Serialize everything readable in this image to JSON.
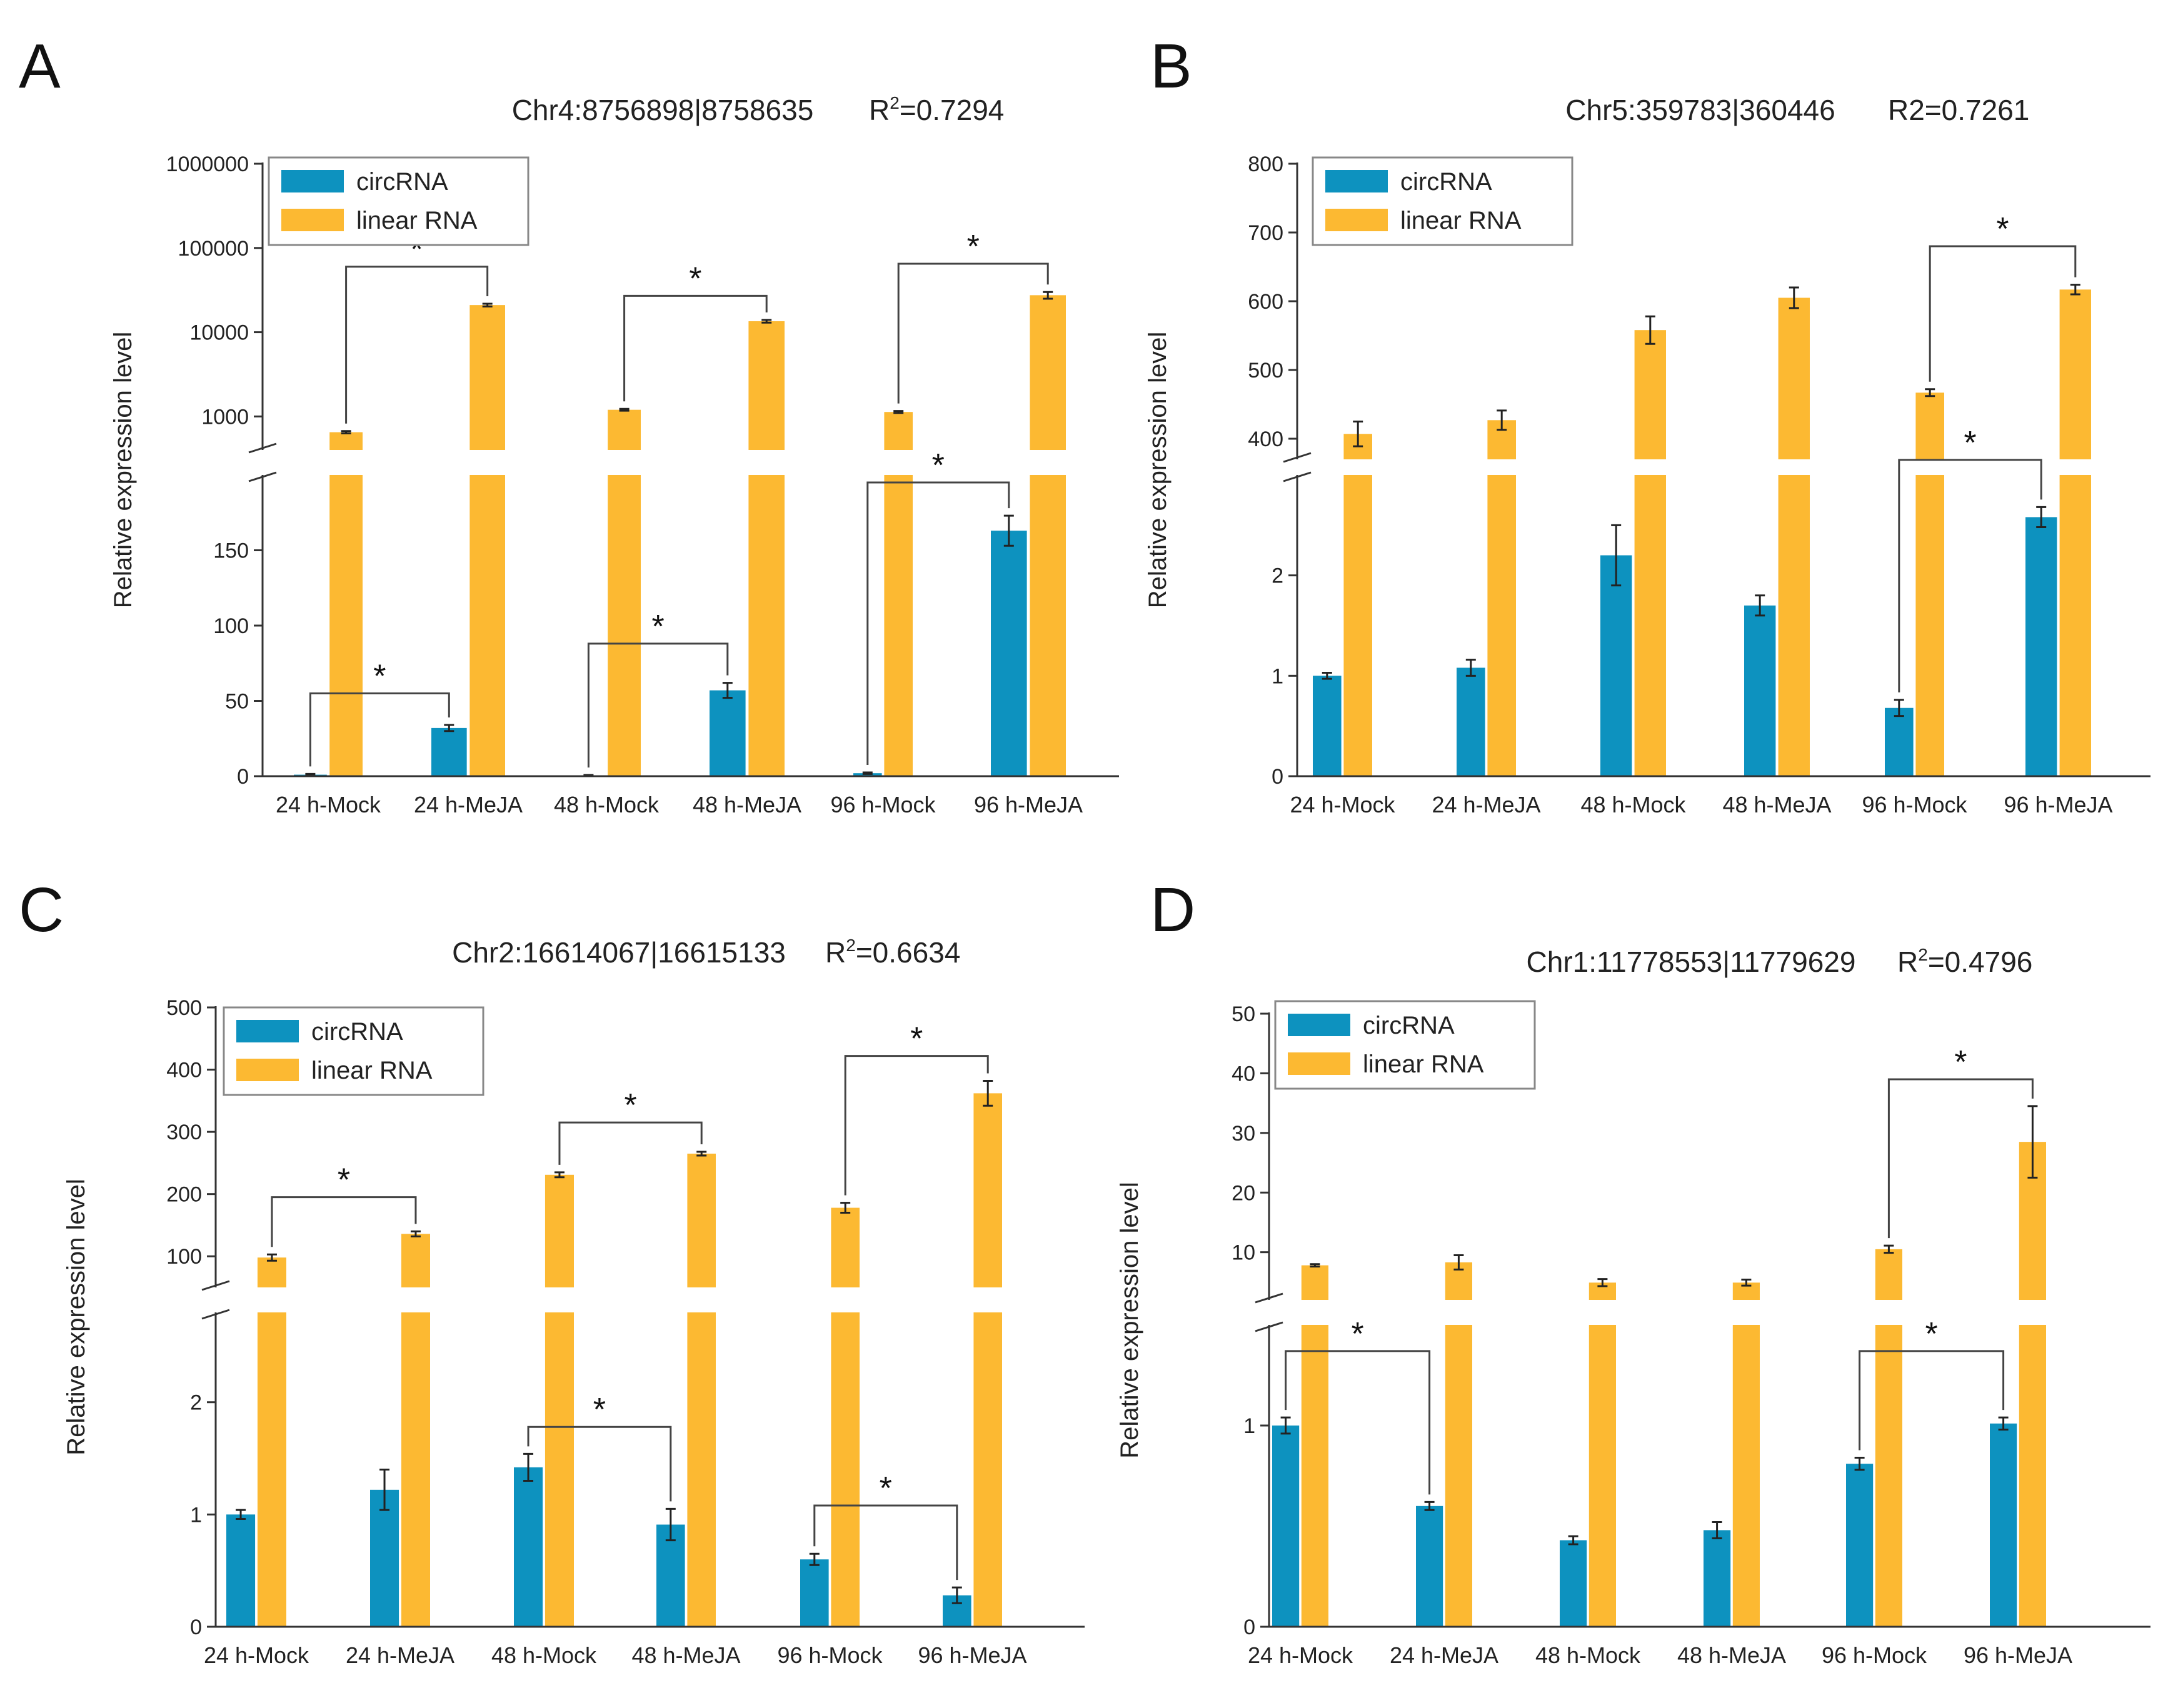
{
  "figure": {
    "colors": {
      "circ": "#0d92bf",
      "linear": "#fcb932",
      "axis": "#333333",
      "bracket": "#444444",
      "text": "#222222"
    },
    "legend": {
      "circ": "circRNA",
      "linear": "linear RNA"
    },
    "ylabel": "Relative expression level",
    "categories": [
      "24 h-Mock",
      "24 h-MeJA",
      "48 h-Mock",
      "48 h-MeJA",
      "96 h-Mock",
      "96 h-MeJA"
    ]
  },
  "chart_data": [
    {
      "panel": "A",
      "type": "bar",
      "title": "Chr4:8756898|8758635",
      "r2_label": "R",
      "r2_sup": "2",
      "r2_value": "=0.7294",
      "ylabel": "Relative expression level",
      "categories": [
        "24 h-Mock",
        "24 h-MeJA",
        "48 h-Mock",
        "48 h-MeJA",
        "96 h-Mock",
        "96 h-MeJA"
      ],
      "lower_axis": {
        "scale": "linear",
        "range": [
          0,
          200
        ],
        "ticks": [
          0,
          50,
          100,
          150
        ]
      },
      "upper_axis": {
        "scale": "log",
        "range": [
          400,
          1000000
        ],
        "ticks": [
          1000,
          10000,
          100000,
          1000000
        ]
      },
      "series": [
        {
          "name": "circRNA",
          "axis": "lower",
          "values": [
            1,
            32,
            0.5,
            57,
            2,
            163
          ],
          "errors": [
            0.5,
            2,
            0.3,
            5,
            0.5,
            10
          ]
        },
        {
          "name": "linear RNA",
          "axis": "upper",
          "values": [
            650,
            21000,
            1200,
            13500,
            1130,
            27500
          ],
          "errors": [
            20,
            800,
            30,
            500,
            30,
            2500
          ]
        }
      ],
      "significance": [
        {
          "axis": "upper",
          "from": [
            0,
            1
          ],
          "to": [
            1,
            1
          ],
          "y": 60000,
          "label": "*"
        },
        {
          "axis": "upper",
          "from": [
            2,
            1
          ],
          "to": [
            3,
            1
          ],
          "y": 27000,
          "label": "*"
        },
        {
          "axis": "upper",
          "from": [
            4,
            1
          ],
          "to": [
            5,
            1
          ],
          "y": 65000,
          "label": "*"
        },
        {
          "axis": "lower",
          "from": [
            0,
            0
          ],
          "to": [
            1,
            0
          ],
          "y": 55,
          "label": "*"
        },
        {
          "axis": "lower",
          "from": [
            2,
            0
          ],
          "to": [
            3,
            0
          ],
          "y": 88,
          "label": "*"
        },
        {
          "axis": "lower",
          "from": [
            4,
            0
          ],
          "to": [
            5,
            0
          ],
          "y": 195,
          "label": "*"
        }
      ]
    },
    {
      "panel": "B",
      "type": "bar",
      "title": "Chr5:359783|360446",
      "r2_label": "R2=0.7261",
      "r2_sup": "",
      "r2_value": "",
      "ylabel": "Relative expression level",
      "categories": [
        "24 h-Mock",
        "24 h-MeJA",
        "48 h-Mock",
        "48 h-MeJA",
        "96 h-Mock",
        "96 h-MeJA"
      ],
      "lower_axis": {
        "scale": "linear",
        "range": [
          0,
          3
        ],
        "ticks": [
          0,
          1,
          2
        ]
      },
      "upper_axis": {
        "scale": "linear",
        "range": [
          370,
          800
        ],
        "ticks": [
          400,
          500,
          600,
          700,
          800
        ]
      },
      "series": [
        {
          "name": "circRNA",
          "axis": "lower",
          "values": [
            1.0,
            1.08,
            2.2,
            1.7,
            0.68,
            2.58
          ],
          "errors": [
            0.03,
            0.08,
            0.3,
            0.1,
            0.08,
            0.1
          ]
        },
        {
          "name": "linear RNA",
          "axis": "upper",
          "values": [
            407,
            427,
            558,
            605,
            467,
            617
          ],
          "errors": [
            18,
            14,
            20,
            15,
            5,
            7
          ]
        }
      ],
      "significance": [
        {
          "axis": "upper",
          "from": [
            4,
            1
          ],
          "to": [
            5,
            1
          ],
          "y": 680,
          "label": "*"
        },
        {
          "axis": "lower",
          "from": [
            4,
            0
          ],
          "to": [
            5,
            0
          ],
          "y": 3.15,
          "label": "*"
        }
      ]
    },
    {
      "panel": "C",
      "type": "bar",
      "title": "Chr2:16614067|16615133",
      "r2_label": "R",
      "r2_sup": "2",
      "r2_value": "=0.6634",
      "ylabel": "Relative expression level",
      "categories": [
        "24 h-Mock",
        "24 h-MeJA",
        "48 h-Mock",
        "48 h-MeJA",
        "96 h-Mock",
        "96 h-MeJA"
      ],
      "lower_axis": {
        "scale": "linear",
        "range": [
          0,
          2.8
        ],
        "ticks": [
          0,
          1,
          2
        ]
      },
      "upper_axis": {
        "scale": "linear",
        "range": [
          50,
          500
        ],
        "ticks": [
          100,
          200,
          300,
          400,
          500
        ]
      },
      "series": [
        {
          "name": "circRNA",
          "axis": "lower",
          "values": [
            1.0,
            1.22,
            1.42,
            0.91,
            0.6,
            0.28
          ],
          "errors": [
            0.04,
            0.18,
            0.12,
            0.14,
            0.05,
            0.07
          ]
        },
        {
          "name": "linear RNA",
          "axis": "upper",
          "values": [
            98,
            136,
            231,
            265,
            178,
            362
          ],
          "errors": [
            5,
            4,
            4,
            3,
            8,
            20
          ]
        }
      ],
      "significance": [
        {
          "axis": "upper",
          "from": [
            0,
            1
          ],
          "to": [
            1,
            1
          ],
          "y": 195,
          "label": "*"
        },
        {
          "axis": "upper",
          "from": [
            2,
            1
          ],
          "to": [
            3,
            1
          ],
          "y": 315,
          "label": "*"
        },
        {
          "axis": "upper",
          "from": [
            4,
            1
          ],
          "to": [
            5,
            1
          ],
          "y": 422,
          "label": "*"
        },
        {
          "axis": "lower",
          "from": [
            2,
            0
          ],
          "to": [
            3,
            0
          ],
          "y": 1.78,
          "label": "*"
        },
        {
          "axis": "lower",
          "from": [
            4,
            0
          ],
          "to": [
            5,
            0
          ],
          "y": 1.08,
          "label": "*"
        }
      ]
    },
    {
      "panel": "D",
      "type": "bar",
      "title": "Chr1:11778553|11779629",
      "r2_label": "R",
      "r2_sup": "2",
      "r2_value": "=0.4796",
      "ylabel": "Relative expression level",
      "categories": [
        "24 h-Mock",
        "24 h-MeJA",
        "48 h-Mock",
        "48 h-MeJA",
        "96 h-Mock",
        "96 h-MeJA"
      ],
      "lower_axis": {
        "scale": "linear",
        "range": [
          0,
          1.5
        ],
        "ticks": [
          0,
          1
        ]
      },
      "upper_axis": {
        "scale": "linear",
        "range": [
          2,
          50
        ],
        "ticks": [
          10,
          20,
          30,
          40,
          50
        ]
      },
      "series": [
        {
          "name": "circRNA",
          "axis": "lower",
          "values": [
            1.0,
            0.6,
            0.43,
            0.48,
            0.81,
            1.01
          ],
          "errors": [
            0.04,
            0.02,
            0.02,
            0.04,
            0.03,
            0.03
          ]
        },
        {
          "name": "linear RNA",
          "axis": "upper",
          "values": [
            7.8,
            8.3,
            4.9,
            4.9,
            10.5,
            28.5
          ],
          "errors": [
            0.2,
            1.2,
            0.6,
            0.5,
            0.6,
            6
          ]
        }
      ],
      "significance": [
        {
          "axis": "upper",
          "from": [
            4,
            1
          ],
          "to": [
            5,
            1
          ],
          "y": 39,
          "label": "*"
        },
        {
          "axis": "lower",
          "from": [
            0,
            0
          ],
          "to": [
            1,
            0
          ],
          "y": 1.37,
          "label": "*"
        },
        {
          "axis": "lower",
          "from": [
            4,
            0
          ],
          "to": [
            5,
            0
          ],
          "y": 1.37,
          "label": "*"
        }
      ]
    }
  ]
}
